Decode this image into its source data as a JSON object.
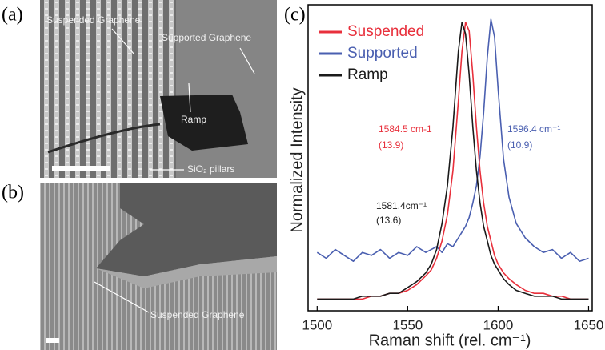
{
  "panels": {
    "a": {
      "label": "(a)",
      "annotations": [
        "Suspended Graphene",
        "Supported Graphene",
        "Ramp",
        "SiO₂ pillars"
      ]
    },
    "b": {
      "label": "(b)",
      "annotations": [
        "Suspended Graphene"
      ]
    },
    "c": {
      "label": "(c)"
    }
  },
  "chart_data": {
    "type": "line",
    "x_label": "Raman shift (rel. cm⁻¹)",
    "y_label": "Normalized Intensity",
    "x": [
      1500,
      1505,
      1510,
      1515,
      1520,
      1525,
      1530,
      1535,
      1540,
      1545,
      1550,
      1555,
      1560,
      1563,
      1566,
      1569,
      1572,
      1575,
      1578,
      1580,
      1582,
      1584,
      1586,
      1588,
      1590,
      1592,
      1594,
      1596,
      1598,
      1600,
      1603,
      1606,
      1610,
      1615,
      1620,
      1625,
      1630,
      1635,
      1640,
      1645,
      1650
    ],
    "series": [
      {
        "name": "Suspended",
        "color": "#e8303c",
        "values": [
          0.04,
          0.04,
          0.04,
          0.04,
          0.04,
          0.04,
          0.05,
          0.05,
          0.06,
          0.06,
          0.07,
          0.09,
          0.12,
          0.14,
          0.18,
          0.24,
          0.33,
          0.48,
          0.72,
          0.89,
          0.99,
          0.96,
          0.81,
          0.63,
          0.48,
          0.37,
          0.29,
          0.24,
          0.19,
          0.16,
          0.13,
          0.11,
          0.09,
          0.07,
          0.06,
          0.06,
          0.05,
          0.05,
          0.04,
          0.04,
          0.04
        ]
      },
      {
        "name": "Supported",
        "color": "#4a5fb0",
        "values": [
          0.2,
          0.18,
          0.21,
          0.19,
          0.17,
          0.2,
          0.19,
          0.21,
          0.18,
          0.2,
          0.19,
          0.22,
          0.2,
          0.21,
          0.22,
          0.2,
          0.23,
          0.22,
          0.25,
          0.27,
          0.29,
          0.32,
          0.37,
          0.43,
          0.53,
          0.68,
          0.87,
          1.0,
          0.94,
          0.76,
          0.52,
          0.39,
          0.3,
          0.25,
          0.22,
          0.2,
          0.21,
          0.18,
          0.2,
          0.17,
          0.18
        ]
      },
      {
        "name": "Ramp",
        "color": "#1a1a1a",
        "values": [
          0.04,
          0.04,
          0.04,
          0.04,
          0.04,
          0.05,
          0.05,
          0.05,
          0.06,
          0.06,
          0.08,
          0.1,
          0.13,
          0.16,
          0.21,
          0.3,
          0.43,
          0.63,
          0.89,
          0.99,
          0.95,
          0.81,
          0.63,
          0.48,
          0.37,
          0.29,
          0.24,
          0.19,
          0.16,
          0.14,
          0.11,
          0.09,
          0.07,
          0.06,
          0.05,
          0.05,
          0.05,
          0.04,
          0.04,
          0.04,
          0.04
        ]
      }
    ],
    "xlim": [
      1495,
      1652
    ],
    "ylim": [
      0,
      1.05
    ],
    "xticks": [
      1500,
      1550,
      1600,
      1650
    ],
    "annotations": [
      {
        "text": "1584.5 cm-1",
        "color": "#e8303c"
      },
      {
        "text": "(13.9)",
        "color": "#e8303c"
      },
      {
        "text": "1596.4 cm⁻¹",
        "color": "#4a5fb0"
      },
      {
        "text": "(10.9)",
        "color": "#4a5fb0"
      },
      {
        "text": "1581.4cm⁻¹",
        "color": "#1a1a1a"
      },
      {
        "text": "(13.6)",
        "color": "#1a1a1a"
      }
    ]
  }
}
